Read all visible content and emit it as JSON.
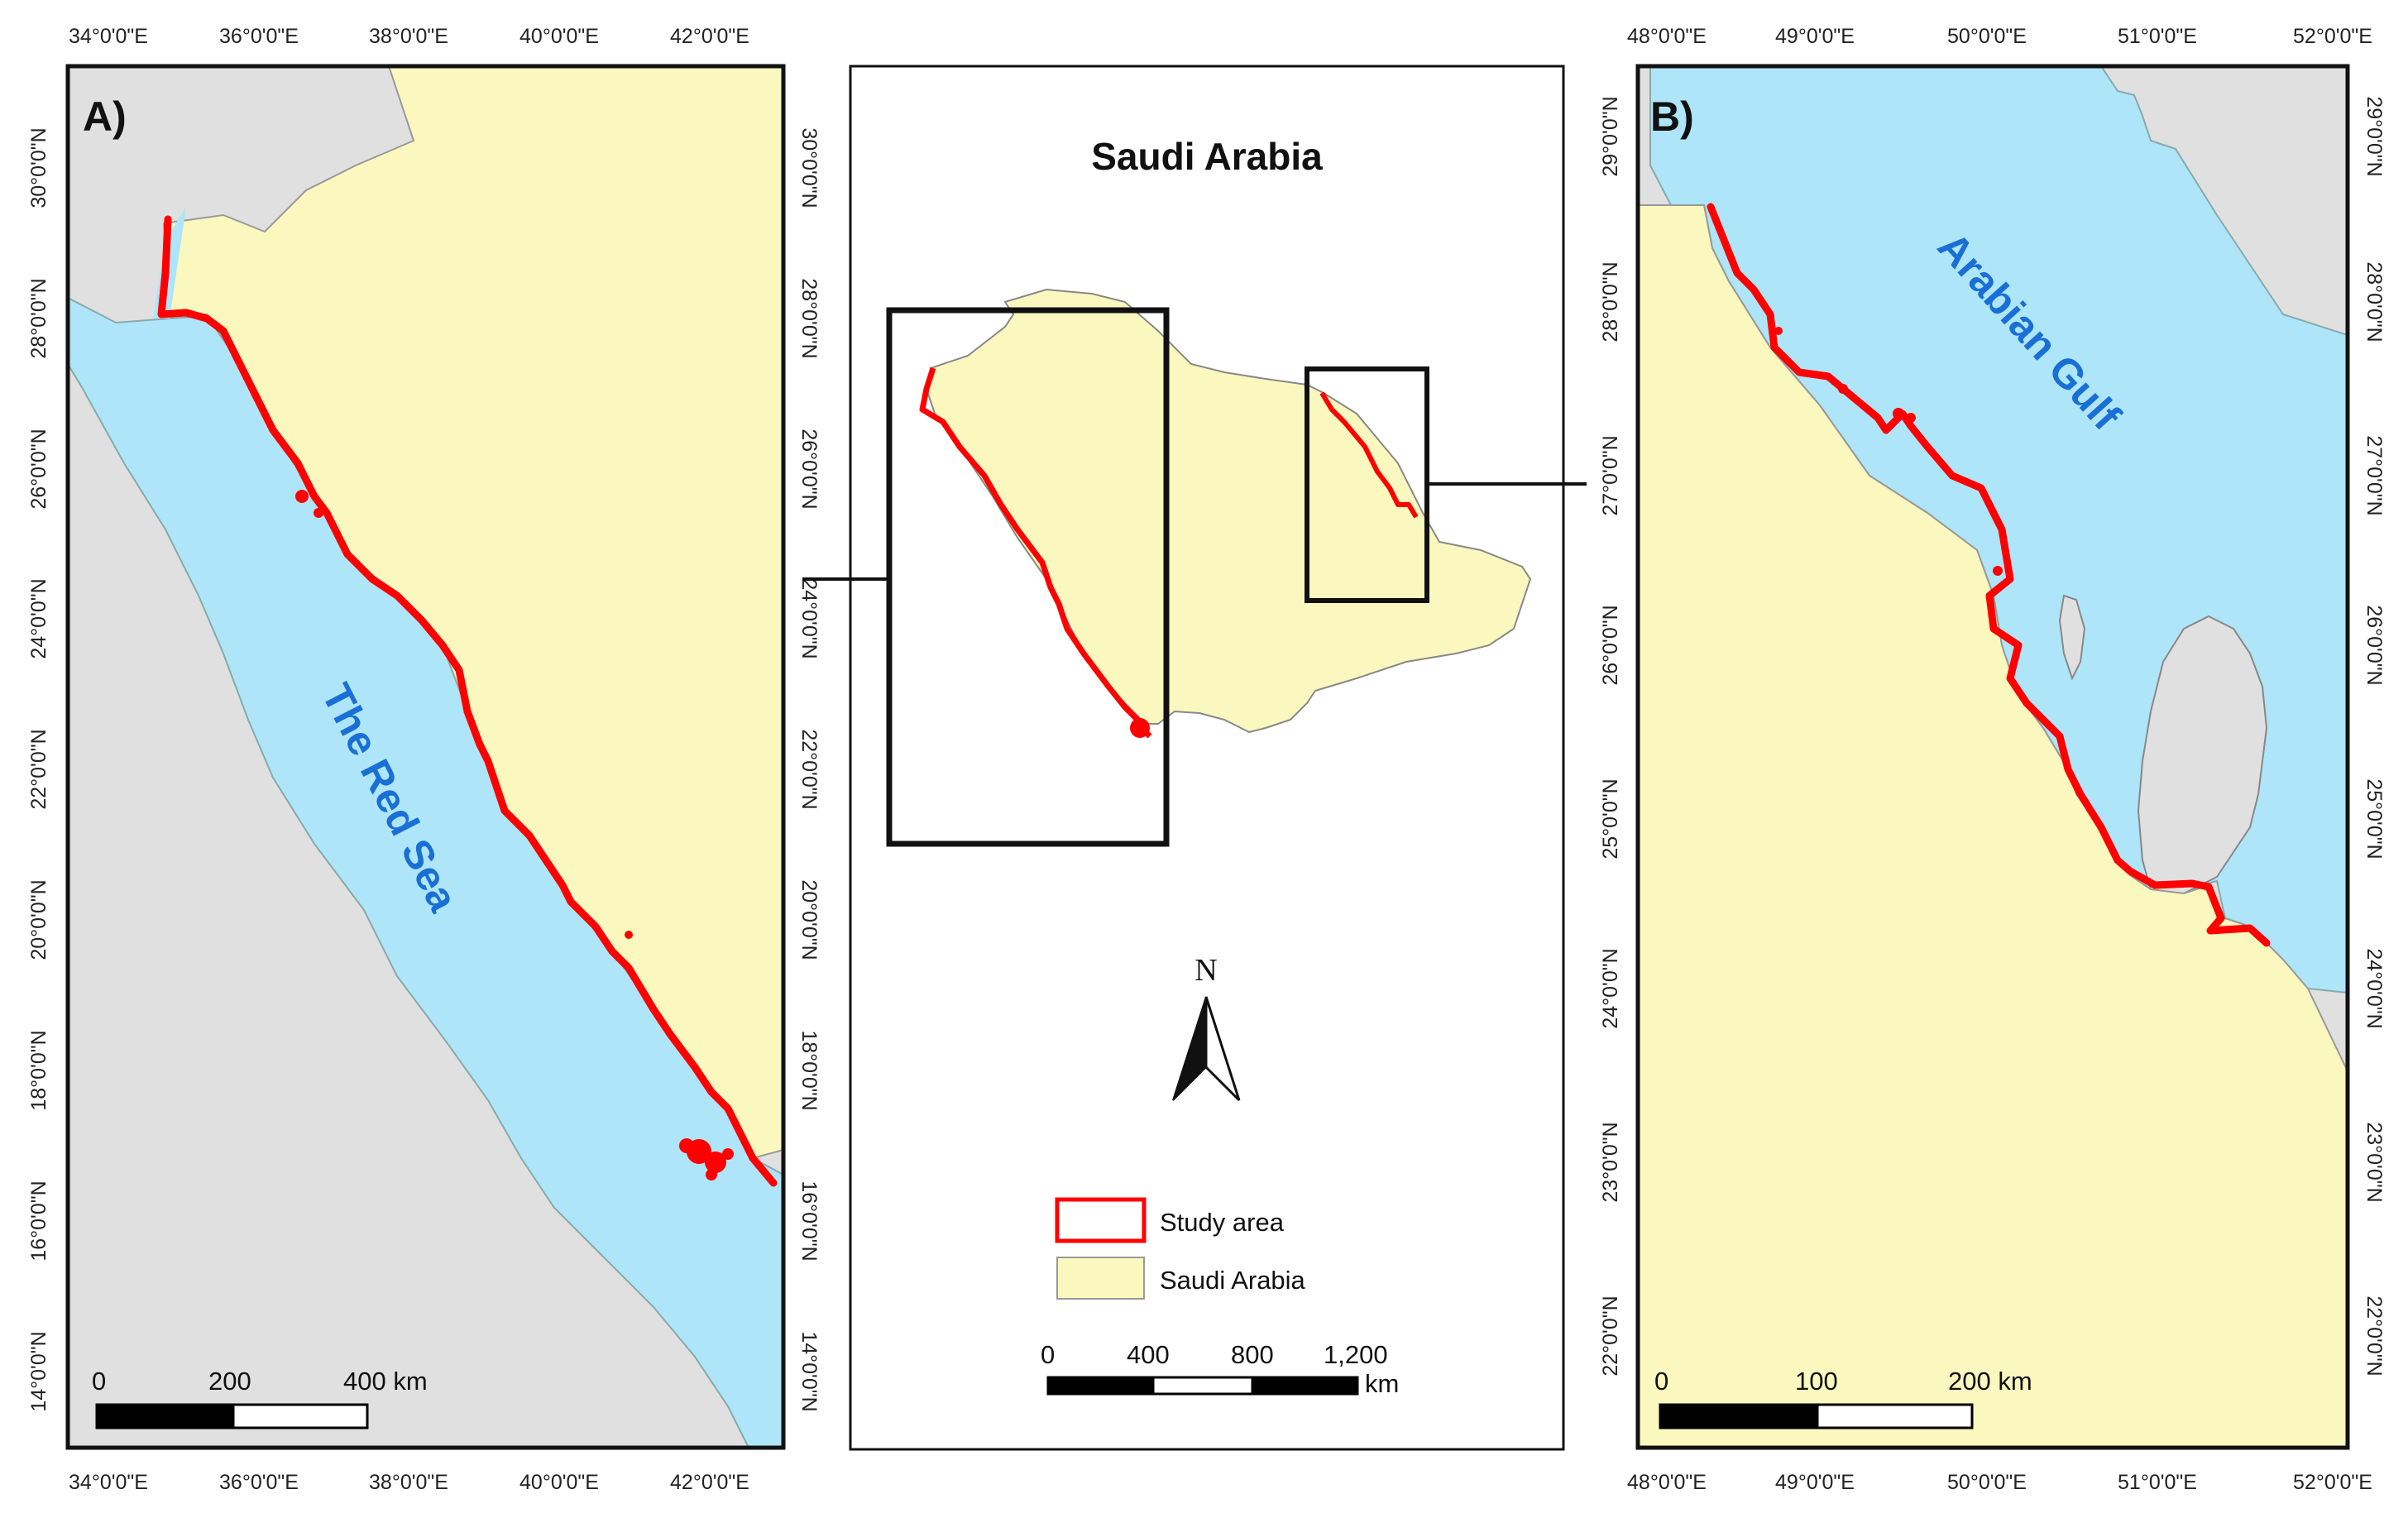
{
  "panel_a": {
    "label": "A)",
    "sea_label": "The Red Sea",
    "lon_ticks": [
      "34°0'0\"E",
      "36°0'0\"E",
      "38°0'0\"E",
      "40°0'0\"E",
      "42°0'0\"E"
    ],
    "lat_ticks": [
      "30°0'0\"N",
      "28°0'0\"N",
      "26°0'0\"N",
      "24°0'0\"N",
      "22°0'0\"N",
      "20°0'0\"N",
      "18°0'0\"N",
      "16°0'0\"N",
      "14°0'0\"N"
    ],
    "scale_labels": [
      "0",
      "200",
      "400 km"
    ]
  },
  "inset": {
    "title": "Saudi Arabia",
    "north_label": "N",
    "legend": [
      {
        "label": "Study area",
        "swatch": "#ff0000"
      },
      {
        "label": "Saudi Arabia",
        "swatch": "#fbf8bf"
      }
    ],
    "scale_labels": [
      "0",
      "400",
      "800",
      "1,200"
    ],
    "scale_unit": "km"
  },
  "panel_b": {
    "label": "B)",
    "sea_label": "Arabian Gulf",
    "lon_ticks": [
      "48°0'0\"E",
      "49°0'0\"E",
      "50°0'0\"E",
      "51°0'0\"E",
      "52°0'0\"E"
    ],
    "lat_ticks": [
      "29°0'0\"N",
      "28°0'0\"N",
      "27°0'0\"N",
      "26°0'0\"N",
      "25°0'0\"N",
      "24°0'0\"N",
      "23°0'0\"N",
      "22°0'0\"N"
    ],
    "scale_labels": [
      "0",
      "100",
      "200 km"
    ]
  },
  "colors": {
    "land": "#e0e0e0",
    "saudi": "#fbf8bf",
    "sea": "#aee5f8",
    "study_area": "#ff0000",
    "sea_label": "#1a6fd6"
  }
}
